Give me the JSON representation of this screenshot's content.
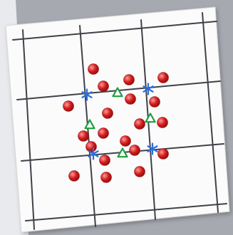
{
  "colors": {
    "background": "#e9eaee",
    "backing_sheet": "#a6a9b0",
    "card": "#fbfbfb",
    "grid_line": "#3f4248",
    "red_marker": "#d21b1b",
    "red_marker_highlight": "#ff9a9a",
    "triangle_marker": "#1f9f3f",
    "star_marker": "#2e6fd8"
  },
  "markers": {
    "red_circles": 20,
    "green_triangles": 4,
    "blue_stars": 4
  }
}
